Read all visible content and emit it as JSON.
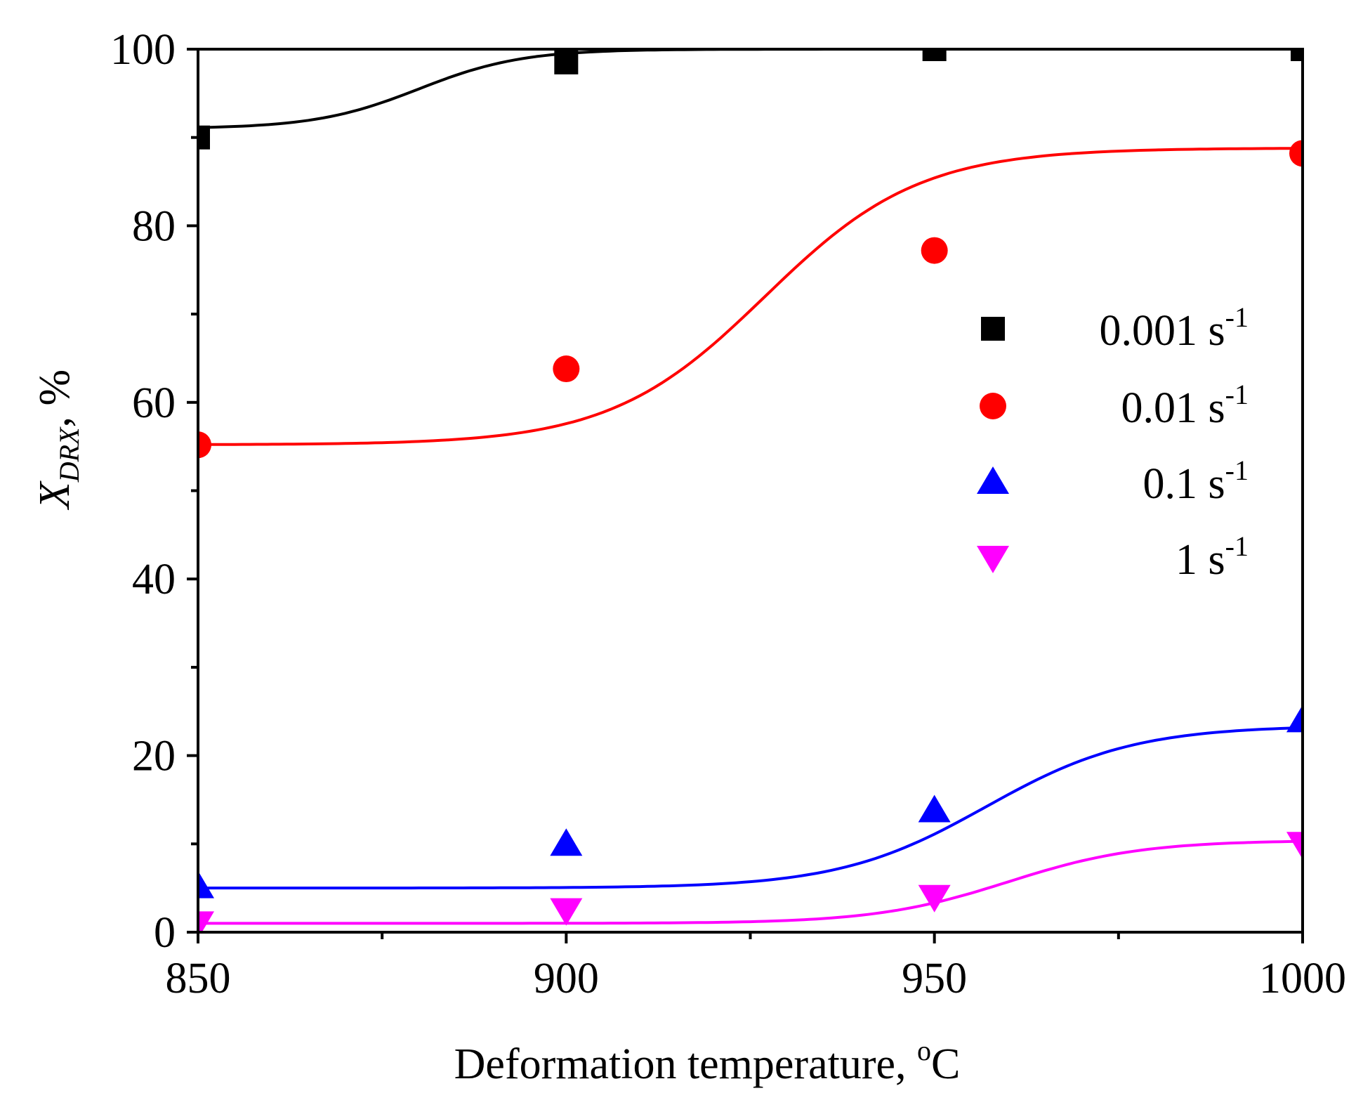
{
  "chart_data": {
    "type": "scatter",
    "title": "",
    "xlabel": "Deformation temperature, °C",
    "xlabel_main": "Deformation temperature, ",
    "xlabel_sup": "o",
    "xlabel_unit": "C",
    "ylabel_var": "X",
    "ylabel_sub": "DRX",
    "ylabel_unit": ", %",
    "xlim": [
      850,
      1000
    ],
    "ylim": [
      0,
      100
    ],
    "x_ticks": [
      850,
      900,
      950,
      1000
    ],
    "y_ticks": [
      0,
      20,
      40,
      60,
      80,
      100
    ],
    "x_minor_step": 25,
    "y_minor_step": 10,
    "grid": false,
    "legend_position": "right-center",
    "series": [
      {
        "name": "0.001 s-1",
        "label_main": "0.001 s",
        "label_sup": "-1",
        "marker": "square",
        "color": "#000000",
        "x": [
          850,
          900,
          950,
          1000
        ],
        "values": [
          90,
          98.5,
          100,
          100
        ],
        "fit_sigmoid": {
          "A1": 91,
          "A2": 100,
          "x0": 880,
          "dx": 7
        }
      },
      {
        "name": "0.01 s-1",
        "label_main": "0.01 s",
        "label_sup": "-1",
        "marker": "circle",
        "color": "#ff0000",
        "x": [
          850,
          900,
          950,
          1000
        ],
        "values": [
          55.2,
          63.8,
          77.2,
          88.2
        ],
        "fit_sigmoid": {
          "A1": 55.2,
          "A2": 88.8,
          "x0": 927,
          "dx": 10.5
        }
      },
      {
        "name": "0.1 s-1",
        "label_main": "0.1  s",
        "label_sup": "-1",
        "marker": "triangle-up",
        "color": "#0000ff",
        "x": [
          850,
          900,
          950,
          1000
        ],
        "values": [
          5.2,
          10,
          13.8,
          24
        ],
        "fit_sigmoid": {
          "A1": 5.0,
          "A2": 23.4,
          "x0": 957,
          "dx": 10
        }
      },
      {
        "name": "1 s-1",
        "label_main": "1   s",
        "label_sup": "-1",
        "marker": "triangle-down",
        "color": "#ff00ff",
        "x": [
          850,
          900,
          950,
          1000
        ],
        "values": [
          1,
          2.5,
          4,
          10
        ],
        "fit_sigmoid": {
          "A1": 1.0,
          "A2": 10.4,
          "x0": 960,
          "dx": 9
        }
      }
    ]
  }
}
